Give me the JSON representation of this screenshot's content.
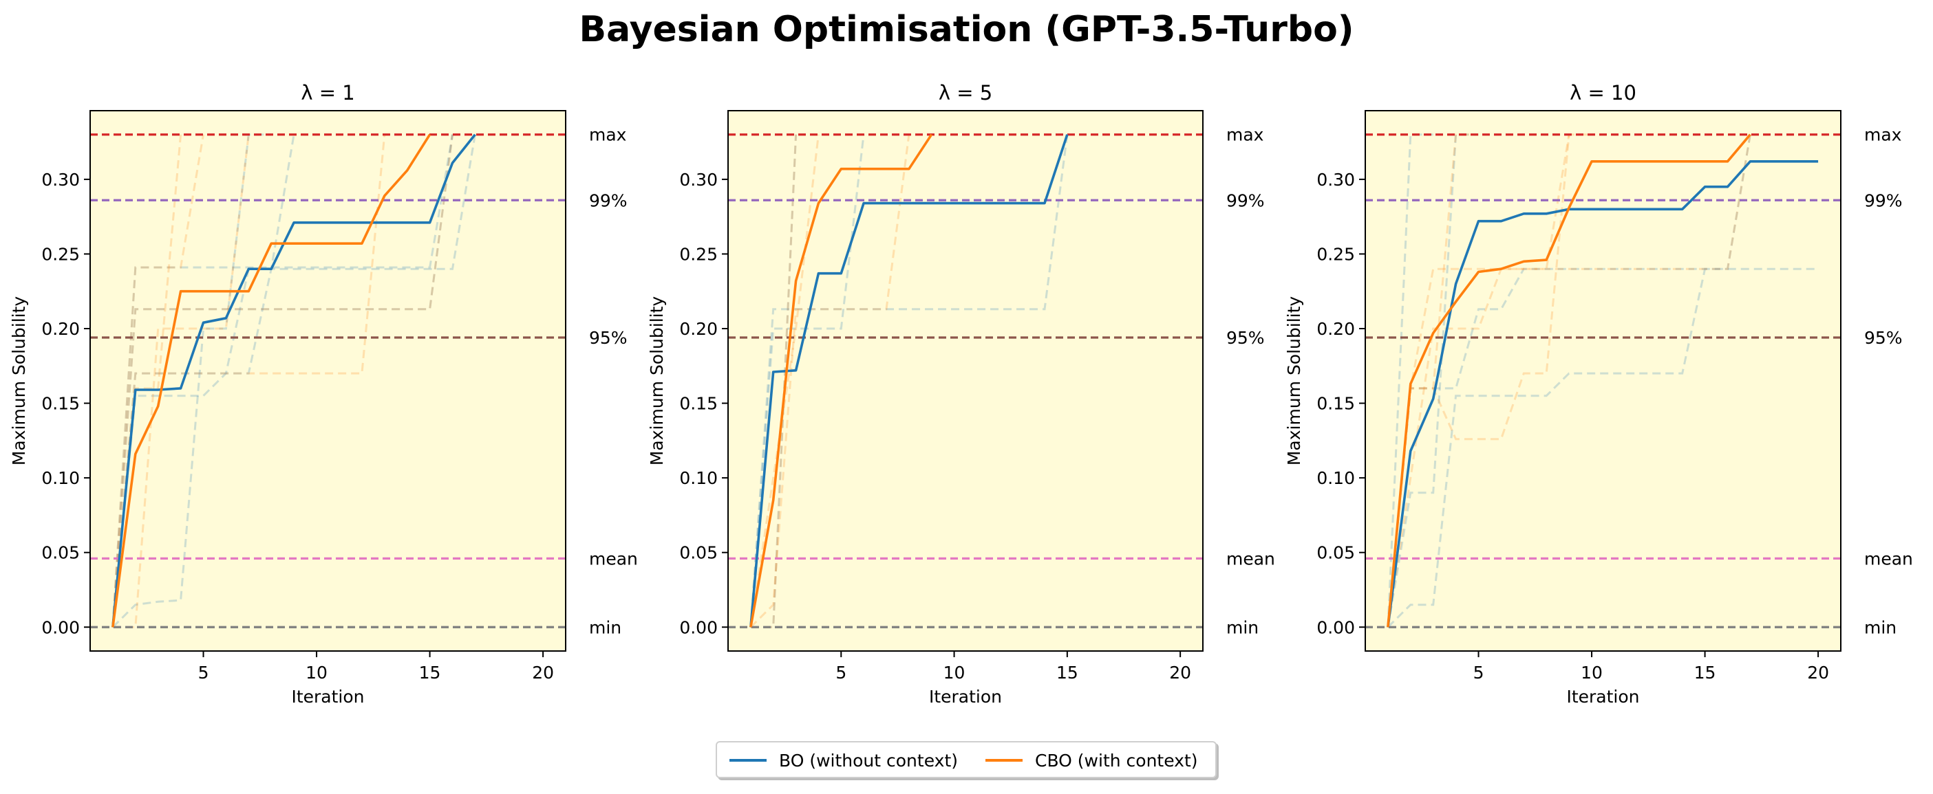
{
  "figure": {
    "title": "Bayesian Optimisation (GPT-3.5-Turbo)"
  },
  "colors": {
    "bo": "#1f77b4",
    "cbo": "#ff7f0e",
    "background": "#fffbd8",
    "max_line": "#d62728",
    "p99_line": "#9467bd",
    "p95_line": "#8c564b",
    "mean_line": "#e377c2",
    "min_line": "#7f7f7f"
  },
  "legend": {
    "placement": "bottom-center",
    "items": [
      {
        "label": "BO (without context)",
        "color_key": "bo"
      },
      {
        "label": "CBO (with context)",
        "color_key": "cbo"
      }
    ]
  },
  "chart_data": [
    {
      "type": "line",
      "title": "λ = 1",
      "xlabel": "Iteration",
      "ylabel": "Maximum Solubility",
      "xlim": [
        0,
        21
      ],
      "ylim": [
        -0.016,
        0.346
      ],
      "xticks": [
        5,
        10,
        15,
        20
      ],
      "yticks": [
        0.0,
        0.05,
        0.1,
        0.15,
        0.2,
        0.25,
        0.3
      ],
      "grid": false,
      "reference_lines": [
        {
          "label": "max",
          "y": 0.33,
          "color_key": "max_line"
        },
        {
          "label": "99%",
          "y": 0.286,
          "color_key": "p99_line"
        },
        {
          "label": "95%",
          "y": 0.194,
          "color_key": "p95_line"
        },
        {
          "label": "mean",
          "y": 0.046,
          "color_key": "mean_line"
        },
        {
          "label": "min",
          "y": 0.0,
          "color_key": "min_line"
        }
      ],
      "series": [
        {
          "name": "BO (without context)",
          "color_key": "bo",
          "x": [
            1,
            2,
            3,
            4,
            5,
            6,
            7,
            8,
            9,
            10,
            11,
            12,
            13,
            14,
            15,
            16,
            17
          ],
          "y": [
            0.0,
            0.159,
            0.159,
            0.16,
            0.204,
            0.207,
            0.24,
            0.24,
            0.271,
            0.271,
            0.271,
            0.271,
            0.271,
            0.271,
            0.271,
            0.311,
            0.33
          ]
        },
        {
          "name": "CBO (with context)",
          "color_key": "cbo",
          "x": [
            1,
            2,
            3,
            4,
            5,
            6,
            7,
            8,
            9,
            10,
            11,
            12,
            13,
            14,
            15
          ],
          "y": [
            0.0,
            0.116,
            0.148,
            0.225,
            0.225,
            0.225,
            0.225,
            0.257,
            0.257,
            0.257,
            0.257,
            0.257,
            0.289,
            0.306,
            0.33
          ]
        }
      ],
      "trials": [
        {
          "color_key": "bo",
          "x": [
            1,
            2,
            3,
            4,
            5,
            6,
            7,
            8,
            9,
            10,
            11,
            12,
            13,
            14,
            15,
            16,
            17
          ],
          "y": [
            0.0,
            0.17,
            0.17,
            0.17,
            0.17,
            0.17,
            0.17,
            0.24,
            0.24,
            0.24,
            0.24,
            0.24,
            0.24,
            0.24,
            0.24,
            0.24,
            0.33
          ]
        },
        {
          "color_key": "bo",
          "x": [
            1,
            2,
            3,
            4,
            5,
            6,
            7,
            8
          ],
          "y": [
            0.0,
            0.015,
            0.017,
            0.018,
            0.2,
            0.2,
            0.33,
            0.33
          ]
        },
        {
          "color_key": "bo",
          "x": [
            1,
            2,
            3,
            4,
            5,
            6,
            7,
            8,
            9,
            10,
            11,
            12,
            13,
            14,
            15,
            16
          ],
          "y": [
            0.0,
            0.213,
            0.213,
            0.213,
            0.213,
            0.213,
            0.213,
            0.213,
            0.213,
            0.213,
            0.213,
            0.213,
            0.213,
            0.213,
            0.213,
            0.33
          ]
        },
        {
          "color_key": "bo",
          "x": [
            1,
            2,
            3,
            4,
            5,
            6,
            7,
            8,
            9
          ],
          "y": [
            0.0,
            0.155,
            0.155,
            0.155,
            0.155,
            0.17,
            0.24,
            0.24,
            0.33
          ]
        },
        {
          "color_key": "bo",
          "x": [
            1,
            2,
            3,
            4,
            5,
            6,
            7,
            8,
            9,
            10,
            11,
            12,
            13,
            14,
            15,
            16
          ],
          "y": [
            0.0,
            0.241,
            0.241,
            0.241,
            0.241,
            0.241,
            0.241,
            0.241,
            0.241,
            0.241,
            0.241,
            0.241,
            0.241,
            0.241,
            0.241,
            0.33
          ]
        },
        {
          "color_key": "cbo",
          "x": [
            1,
            2,
            3,
            4
          ],
          "y": [
            0.0,
            0.16,
            0.16,
            0.33
          ]
        },
        {
          "color_key": "cbo",
          "x": [
            1,
            2,
            3,
            4,
            5,
            6,
            7,
            8,
            9,
            10,
            11,
            12,
            13
          ],
          "y": [
            0.0,
            0.17,
            0.17,
            0.17,
            0.17,
            0.17,
            0.17,
            0.17,
            0.17,
            0.17,
            0.17,
            0.17,
            0.33
          ]
        },
        {
          "color_key": "cbo",
          "x": [
            1,
            2,
            3,
            4,
            5,
            6,
            7
          ],
          "y": [
            0.0,
            0.0,
            0.2,
            0.2,
            0.2,
            0.2,
            0.33
          ]
        },
        {
          "color_key": "cbo",
          "x": [
            1,
            2,
            3,
            4,
            5,
            6,
            7,
            8,
            9,
            10,
            11,
            12,
            13,
            14,
            15,
            16
          ],
          "y": [
            0.0,
            0.213,
            0.213,
            0.213,
            0.213,
            0.213,
            0.213,
            0.213,
            0.213,
            0.213,
            0.213,
            0.213,
            0.213,
            0.213,
            0.213,
            0.33
          ]
        },
        {
          "color_key": "cbo",
          "x": [
            1,
            2,
            3,
            4,
            5
          ],
          "y": [
            0.0,
            0.241,
            0.241,
            0.241,
            0.33
          ]
        }
      ]
    },
    {
      "type": "line",
      "title": "λ = 5",
      "xlabel": "Iteration",
      "ylabel": "Maximum Solubility",
      "xlim": [
        0,
        21
      ],
      "ylim": [
        -0.016,
        0.346
      ],
      "xticks": [
        5,
        10,
        15,
        20
      ],
      "yticks": [
        0.0,
        0.05,
        0.1,
        0.15,
        0.2,
        0.25,
        0.3
      ],
      "grid": false,
      "reference_lines": [
        {
          "label": "max",
          "y": 0.33,
          "color_key": "max_line"
        },
        {
          "label": "99%",
          "y": 0.286,
          "color_key": "p99_line"
        },
        {
          "label": "95%",
          "y": 0.194,
          "color_key": "p95_line"
        },
        {
          "label": "mean",
          "y": 0.046,
          "color_key": "mean_line"
        },
        {
          "label": "min",
          "y": 0.0,
          "color_key": "min_line"
        }
      ],
      "series": [
        {
          "name": "BO (without context)",
          "color_key": "bo",
          "x": [
            1,
            2,
            3,
            4,
            5,
            6,
            7,
            8,
            9,
            10,
            11,
            12,
            13,
            14,
            15
          ],
          "y": [
            0.0,
            0.171,
            0.172,
            0.237,
            0.237,
            0.284,
            0.284,
            0.284,
            0.284,
            0.284,
            0.284,
            0.284,
            0.284,
            0.284,
            0.33
          ]
        },
        {
          "name": "CBO (with context)",
          "color_key": "cbo",
          "x": [
            1,
            2,
            3,
            4,
            5,
            6,
            7,
            8,
            9
          ],
          "y": [
            0.0,
            0.085,
            0.232,
            0.284,
            0.307,
            0.307,
            0.307,
            0.307,
            0.33
          ]
        }
      ],
      "trials": [
        {
          "color_key": "bo",
          "x": [
            1,
            2,
            3,
            4,
            5,
            6,
            7,
            8,
            9,
            10,
            11,
            12,
            13,
            14,
            15
          ],
          "y": [
            0.0,
            0.213,
            0.213,
            0.213,
            0.213,
            0.213,
            0.213,
            0.213,
            0.213,
            0.213,
            0.213,
            0.213,
            0.213,
            0.213,
            0.33
          ]
        },
        {
          "color_key": "bo",
          "x": [
            1,
            2,
            3
          ],
          "y": [
            0.0,
            0.0,
            0.33
          ]
        },
        {
          "color_key": "bo",
          "x": [
            1,
            2,
            3,
            4,
            5,
            6
          ],
          "y": [
            0.0,
            0.2,
            0.2,
            0.2,
            0.2,
            0.33
          ]
        },
        {
          "color_key": "cbo",
          "x": [
            1,
            2,
            3,
            4,
            5,
            6,
            7,
            8
          ],
          "y": [
            0.0,
            0.015,
            0.213,
            0.213,
            0.213,
            0.213,
            0.213,
            0.33
          ]
        },
        {
          "color_key": "cbo",
          "x": [
            1,
            2,
            3
          ],
          "y": [
            0.0,
            0.0,
            0.33
          ]
        },
        {
          "color_key": "cbo",
          "x": [
            1,
            2,
            3,
            4
          ],
          "y": [
            0.0,
            0.1,
            0.2,
            0.33
          ]
        }
      ]
    },
    {
      "type": "line",
      "title": "λ = 10",
      "xlabel": "Iteration",
      "ylabel": "Maximum Solubility",
      "xlim": [
        0,
        21
      ],
      "ylim": [
        -0.016,
        0.346
      ],
      "xticks": [
        5,
        10,
        15,
        20
      ],
      "yticks": [
        0.0,
        0.05,
        0.1,
        0.15,
        0.2,
        0.25,
        0.3
      ],
      "grid": false,
      "reference_lines": [
        {
          "label": "max",
          "y": 0.33,
          "color_key": "max_line"
        },
        {
          "label": "99%",
          "y": 0.286,
          "color_key": "p99_line"
        },
        {
          "label": "95%",
          "y": 0.194,
          "color_key": "p95_line"
        },
        {
          "label": "mean",
          "y": 0.046,
          "color_key": "mean_line"
        },
        {
          "label": "min",
          "y": 0.0,
          "color_key": "min_line"
        }
      ],
      "series": [
        {
          "name": "BO (without context)",
          "color_key": "bo",
          "x": [
            1,
            2,
            3,
            4,
            5,
            6,
            7,
            8,
            9,
            10,
            11,
            12,
            13,
            14,
            15,
            16,
            17,
            18,
            19,
            20
          ],
          "y": [
            0.0,
            0.118,
            0.153,
            0.23,
            0.272,
            0.272,
            0.277,
            0.277,
            0.28,
            0.28,
            0.28,
            0.28,
            0.28,
            0.28,
            0.295,
            0.295,
            0.312,
            0.312,
            0.312,
            0.312
          ]
        },
        {
          "name": "CBO (with context)",
          "color_key": "cbo",
          "x": [
            1,
            2,
            3,
            4,
            5,
            6,
            7,
            8,
            9,
            10,
            11,
            12,
            13,
            14,
            15,
            16,
            17
          ],
          "y": [
            0.0,
            0.163,
            0.197,
            0.218,
            0.238,
            0.24,
            0.245,
            0.246,
            0.281,
            0.312,
            0.312,
            0.312,
            0.312,
            0.312,
            0.312,
            0.312,
            0.33
          ]
        }
      ],
      "trials": [
        {
          "color_key": "bo",
          "x": [
            1,
            2,
            3
          ],
          "y": [
            0.0,
            0.33,
            0.33
          ]
        },
        {
          "color_key": "bo",
          "x": [
            1,
            2,
            3,
            4,
            5
          ],
          "y": [
            0.0,
            0.09,
            0.09,
            0.33,
            0.33
          ]
        },
        {
          "color_key": "bo",
          "x": [
            1,
            2,
            3,
            4,
            5,
            6,
            7,
            8,
            9,
            10,
            11,
            12,
            13,
            14,
            15,
            16,
            17
          ],
          "y": [
            0.0,
            0.015,
            0.015,
            0.155,
            0.155,
            0.155,
            0.155,
            0.155,
            0.17,
            0.17,
            0.17,
            0.17,
            0.17,
            0.17,
            0.24,
            0.24,
            0.33
          ]
        },
        {
          "color_key": "bo",
          "x": [
            1,
            2,
            3,
            4,
            5,
            6,
            7,
            8,
            9,
            10,
            11,
            12,
            13,
            14,
            15,
            16,
            17,
            18,
            19,
            20
          ],
          "y": [
            0.0,
            0.16,
            0.16,
            0.16,
            0.213,
            0.213,
            0.24,
            0.24,
            0.24,
            0.24,
            0.24,
            0.24,
            0.24,
            0.24,
            0.24,
            0.24,
            0.24,
            0.24,
            0.24,
            0.24
          ]
        },
        {
          "color_key": "cbo",
          "x": [
            1,
            2,
            3,
            4,
            5
          ],
          "y": [
            0.0,
            0.16,
            0.16,
            0.33,
            0.33
          ]
        },
        {
          "color_key": "cbo",
          "x": [
            1,
            2,
            3,
            4,
            5,
            6,
            7,
            8,
            9
          ],
          "y": [
            0.0,
            0.1,
            0.2,
            0.2,
            0.2,
            0.24,
            0.24,
            0.24,
            0.33
          ]
        },
        {
          "color_key": "cbo",
          "x": [
            1,
            2,
            3,
            4,
            5,
            6,
            7,
            8,
            9,
            10
          ],
          "y": [
            0.0,
            0.16,
            0.16,
            0.126,
            0.126,
            0.126,
            0.17,
            0.17,
            0.33,
            0.33
          ]
        },
        {
          "color_key": "cbo",
          "x": [
            1,
            2,
            3,
            4,
            5,
            6,
            7,
            8,
            9,
            10,
            11,
            12,
            13,
            14,
            15,
            16,
            17
          ],
          "y": [
            0.0,
            0.16,
            0.24,
            0.24,
            0.24,
            0.24,
            0.24,
            0.24,
            0.24,
            0.24,
            0.24,
            0.24,
            0.24,
            0.24,
            0.24,
            0.24,
            0.33
          ]
        }
      ]
    }
  ]
}
